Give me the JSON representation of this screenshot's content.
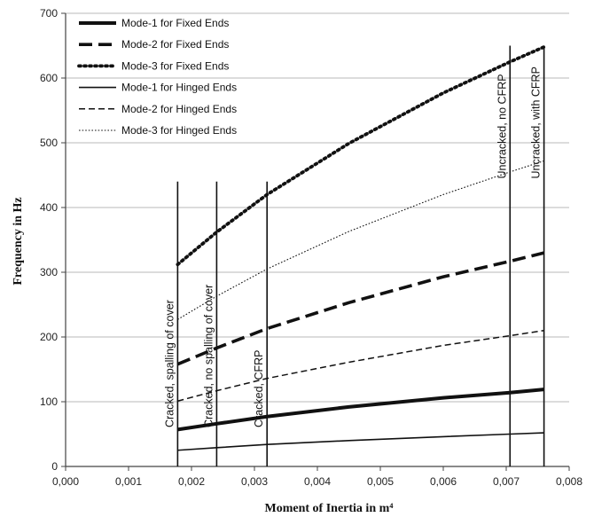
{
  "chart_data": {
    "type": "line",
    "xlabel": "Moment of Inertia in m⁴",
    "ylabel": "Frequency in Hz",
    "xlim": [
      0,
      0.008
    ],
    "ylim": [
      0,
      700
    ],
    "x_ticks": [
      "0,000",
      "0,001",
      "0,002",
      "0,003",
      "0,004",
      "0,005",
      "0,006",
      "0,007",
      "0,008"
    ],
    "y_ticks": [
      "0",
      "100",
      "200",
      "300",
      "400",
      "500",
      "600",
      "700"
    ],
    "grid": "horizontal",
    "legend_position": "top-left",
    "series": [
      {
        "name": "Mode-1 for Fixed Ends",
        "style": "solid-thick",
        "x": [
          0.00178,
          0.0024,
          0.0032,
          0.0045,
          0.006,
          0.00706,
          0.0076
        ],
        "y": [
          57,
          66,
          77,
          92,
          106,
          114,
          119
        ]
      },
      {
        "name": "Mode-2 for Fixed Ends",
        "style": "dashed-thick",
        "x": [
          0.00178,
          0.0024,
          0.0032,
          0.0045,
          0.006,
          0.00706,
          0.0076
        ],
        "y": [
          158,
          183,
          213,
          253,
          293,
          317,
          330
        ]
      },
      {
        "name": "Mode-3 for Fixed Ends",
        "style": "dotted-thick",
        "x": [
          0.00178,
          0.0024,
          0.0032,
          0.0045,
          0.006,
          0.00706,
          0.0076
        ],
        "y": [
          312,
          362,
          420,
          499,
          577,
          625,
          648
        ]
      },
      {
        "name": "Mode-1 for Hinged Ends",
        "style": "solid-thin",
        "x": [
          0.00178,
          0.0024,
          0.0032,
          0.0045,
          0.006,
          0.00706,
          0.0076
        ],
        "y": [
          25,
          29,
          34,
          40,
          46,
          50,
          52
        ]
      },
      {
        "name": "Mode-2 for Hinged Ends",
        "style": "dashed-thin",
        "x": [
          0.00178,
          0.0024,
          0.0032,
          0.0045,
          0.006,
          0.00706,
          0.0076
        ],
        "y": [
          101,
          117,
          136,
          161,
          187,
          202,
          210
        ]
      },
      {
        "name": "Mode-3 for Hinged Ends",
        "style": "dotted-thin",
        "x": [
          0.00178,
          0.0024,
          0.0032,
          0.0045,
          0.006,
          0.00706,
          0.0076
        ],
        "y": [
          227,
          263,
          305,
          363,
          420,
          455,
          472
        ]
      }
    ],
    "vertical_markers": [
      {
        "x": 0.00178,
        "y_top": 440,
        "label": "Cracked, spalling of cover"
      },
      {
        "x": 0.0024,
        "y_top": 440,
        "label": "Cracked, no spalling of cover"
      },
      {
        "x": 0.0032,
        "y_top": 440,
        "label": "Cracked, CFRP"
      },
      {
        "x": 0.00706,
        "y_top": 650,
        "label": "Uncracked, no CFRP"
      },
      {
        "x": 0.0076,
        "y_top": 650,
        "label": "Uncracked, with CFRP"
      }
    ]
  }
}
